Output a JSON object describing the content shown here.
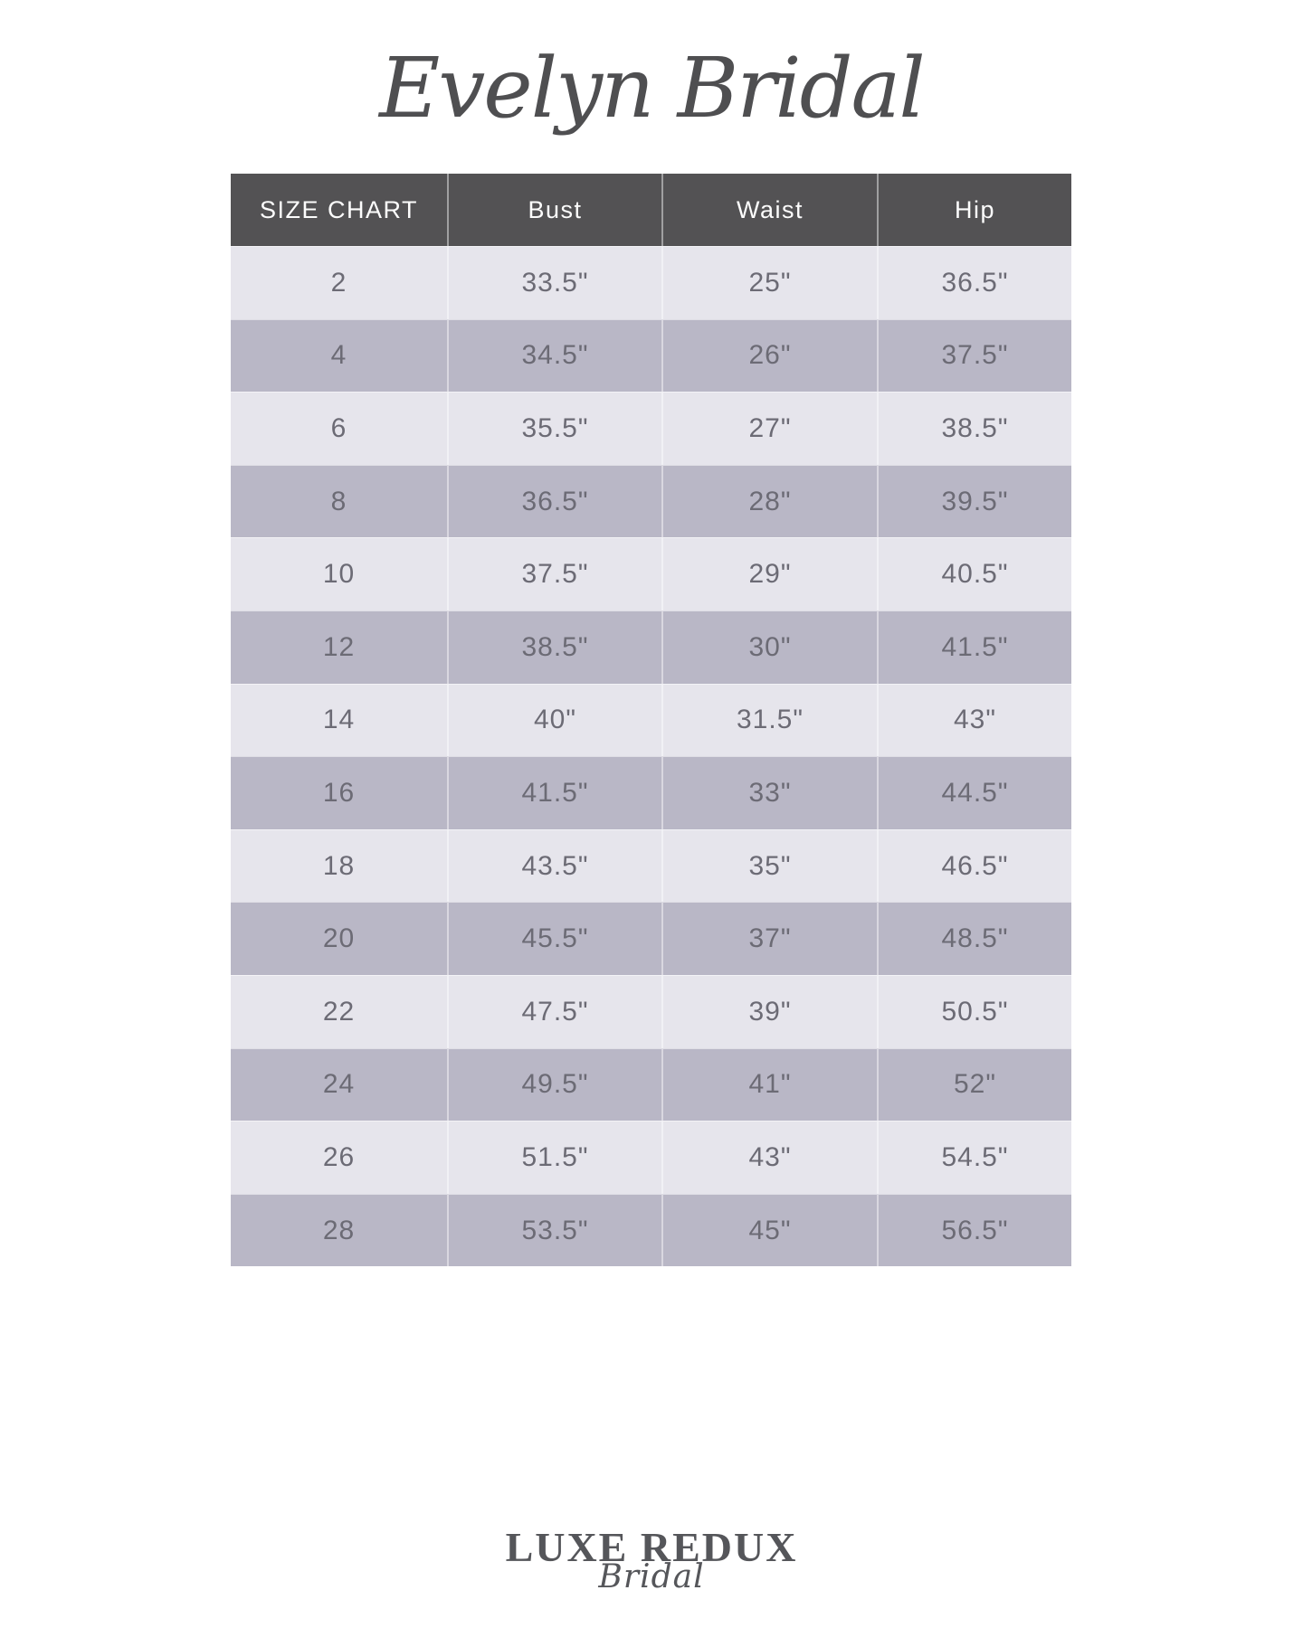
{
  "brand": {
    "title": "Evelyn Bridal"
  },
  "chart_data": {
    "type": "table",
    "title": "Evelyn Bridal Size Chart",
    "columns": [
      "SIZE CHART",
      "Bust",
      "Waist",
      "Hip"
    ],
    "rows": [
      [
        "2",
        "33.5\"",
        "25\"",
        "36.5\""
      ],
      [
        "4",
        "34.5\"",
        "26\"",
        "37.5\""
      ],
      [
        "6",
        "35.5\"",
        "27\"",
        "38.5\""
      ],
      [
        "8",
        "36.5\"",
        "28\"",
        "39.5\""
      ],
      [
        "10",
        "37.5\"",
        "29\"",
        "40.5\""
      ],
      [
        "12",
        "38.5\"",
        "30\"",
        "41.5\""
      ],
      [
        "14",
        "40\"",
        "31.5\"",
        "43\""
      ],
      [
        "16",
        "41.5\"",
        "33\"",
        "44.5\""
      ],
      [
        "18",
        "43.5\"",
        "35\"",
        "46.5\""
      ],
      [
        "20",
        "45.5\"",
        "37\"",
        "48.5\""
      ],
      [
        "22",
        "47.5\"",
        "39\"",
        "50.5\""
      ],
      [
        "24",
        "49.5\"",
        "41\"",
        "52\""
      ],
      [
        "26",
        "51.5\"",
        "43\"",
        "54.5\""
      ],
      [
        "28",
        "53.5\"",
        "45\"",
        "56.5\""
      ]
    ],
    "layout": {
      "header_position": "top",
      "alternating_rows": true,
      "grid": "column-dividers"
    }
  },
  "footer": {
    "logo_line1": "LUXE REDUX",
    "logo_line2": "Bridal"
  },
  "colors": {
    "page_bg": "#ffffff",
    "header_bg": "#535254",
    "header_text": "#fdfdfd",
    "row_light": "#e6e5ec",
    "row_dark": "#b9b7c6",
    "cell_text": "#6c6b75",
    "title_text": "#4f4f51",
    "logo_text": "#55565a"
  }
}
